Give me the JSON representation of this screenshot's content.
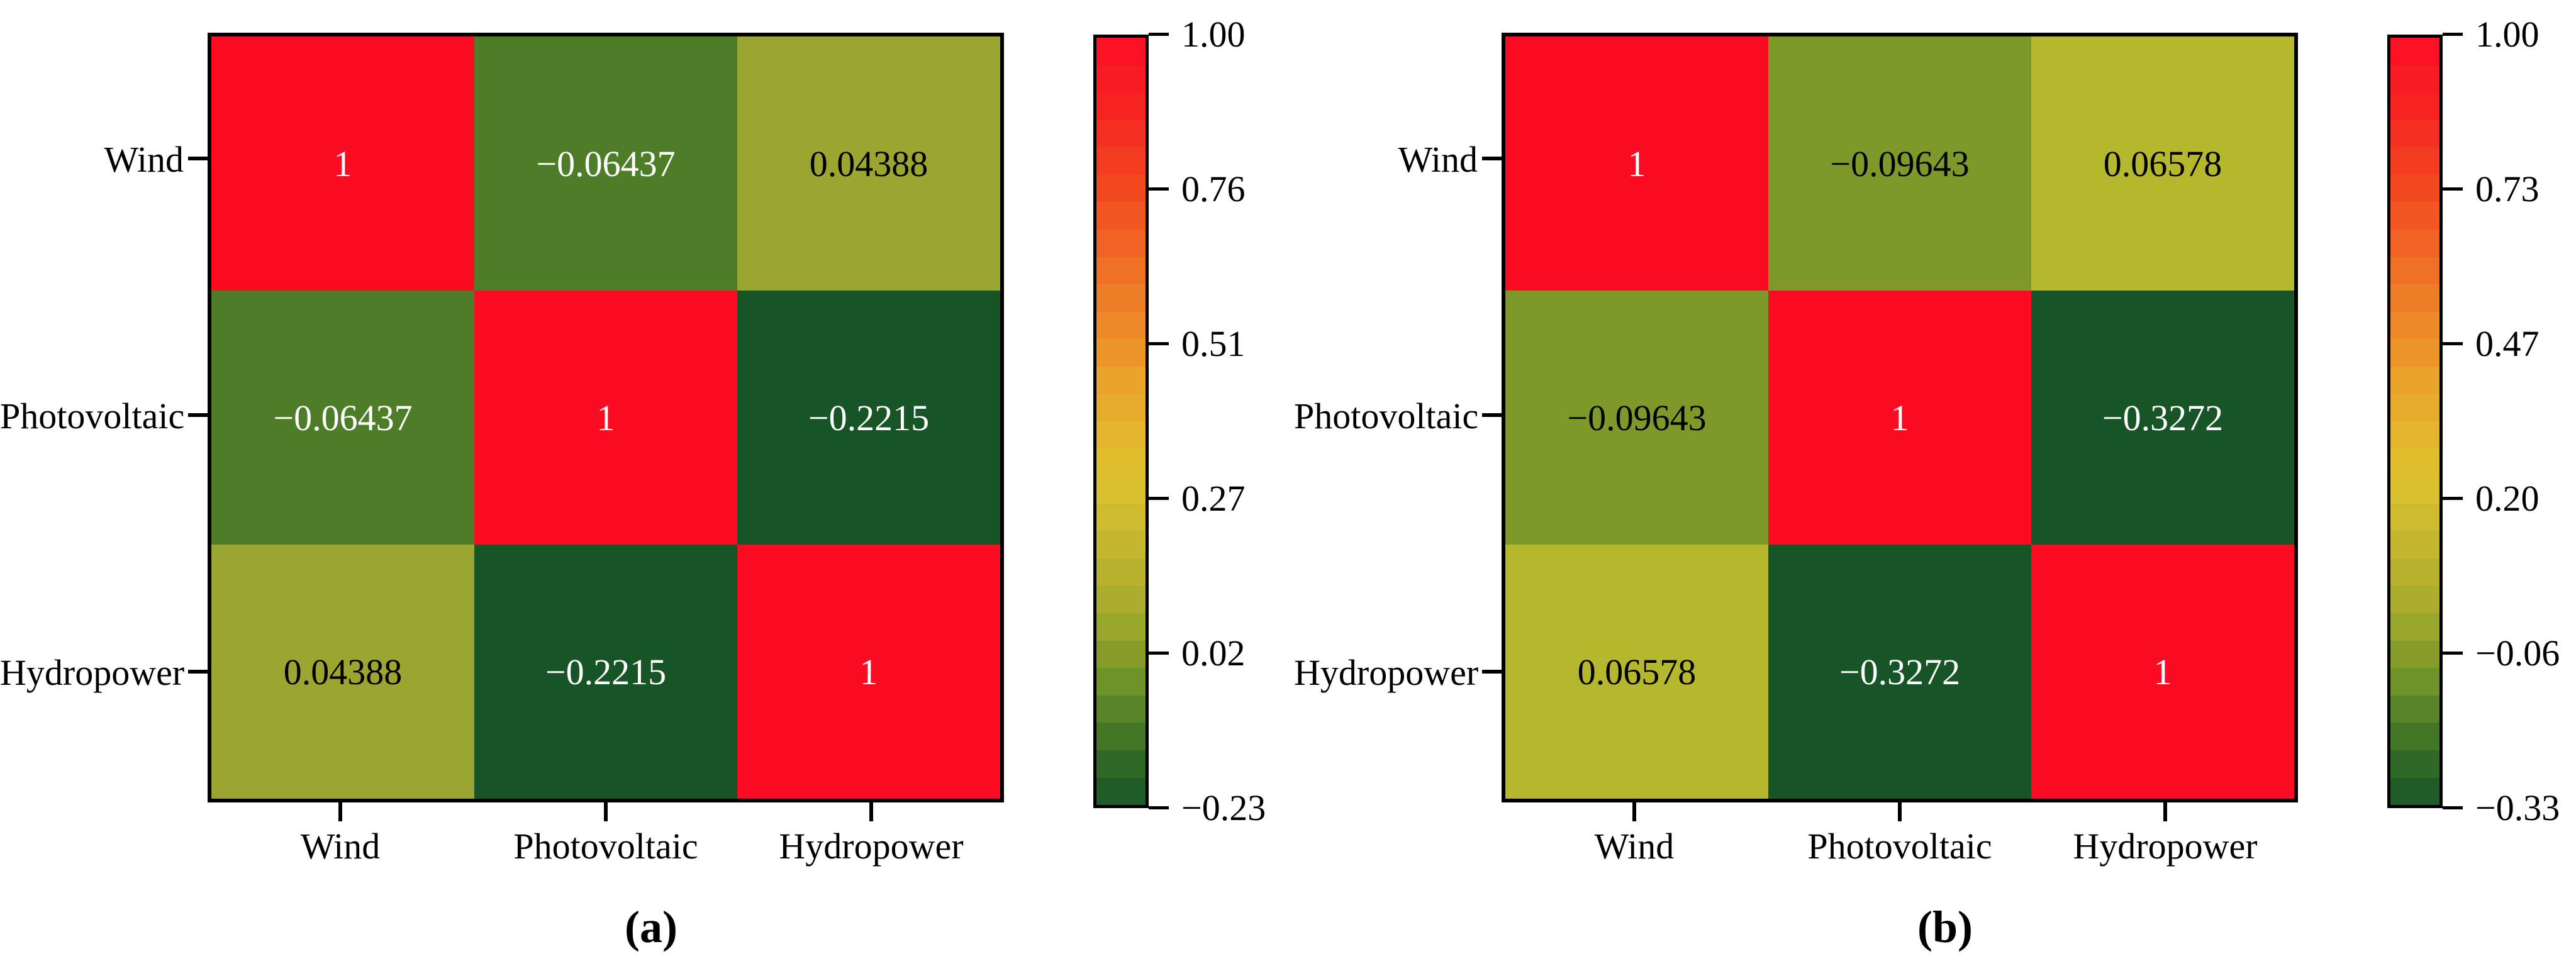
{
  "figure": {
    "background": "#ffffff",
    "font_color": "#000000"
  },
  "colormap": {
    "description": "red (high) to dark green (low), stepped",
    "steps": 28,
    "stops": [
      {
        "t": 0.0,
        "c": "#fb0c23"
      },
      {
        "t": 0.1,
        "c": "#f62621"
      },
      {
        "t": 0.2,
        "c": "#f34a21"
      },
      {
        "t": 0.32,
        "c": "#ef7626"
      },
      {
        "t": 0.45,
        "c": "#eaa42b"
      },
      {
        "t": 0.57,
        "c": "#e0c22e"
      },
      {
        "t": 0.67,
        "c": "#c1b52e"
      },
      {
        "t": 0.76,
        "c": "#9fa92d"
      },
      {
        "t": 0.84,
        "c": "#6f9229"
      },
      {
        "t": 0.92,
        "c": "#3d7327"
      },
      {
        "t": 1.0,
        "c": "#175527"
      }
    ]
  },
  "chart_data": [
    {
      "type": "heatmap",
      "panel_label": "(a)",
      "x_categories": [
        "Wind",
        "Photovoltaic",
        "Hydropower"
      ],
      "y_categories": [
        "Wind",
        "Photovoltaic",
        "Hydropower"
      ],
      "matrix": [
        [
          1,
          -0.06437,
          0.04388
        ],
        [
          -0.06437,
          1,
          -0.2215
        ],
        [
          0.04388,
          -0.2215,
          1
        ]
      ],
      "cell_labels": [
        [
          "1",
          "−0.06437",
          "0.04388"
        ],
        [
          "−0.06437",
          "1",
          "−0.2215"
        ],
        [
          "0.04388",
          "−0.2215",
          "1"
        ]
      ],
      "cell_colors": [
        [
          "#fb0c23",
          "#4e7d28",
          "#9aa62f"
        ],
        [
          "#4e7d28",
          "#fb0c23",
          "#175527"
        ],
        [
          "#9aa62f",
          "#175527",
          "#fb0c23"
        ]
      ],
      "cell_text_colors": [
        [
          "#ffffff",
          "#ffffff",
          "#000000"
        ],
        [
          "#ffffff",
          "#ffffff",
          "#ffffff"
        ],
        [
          "#000000",
          "#ffffff",
          "#ffffff"
        ]
      ],
      "colorbar": {
        "vmin": -0.23,
        "vmax": 1.0,
        "ticks": [
          "1.00",
          "0.76",
          "0.51",
          "0.27",
          "0.02",
          "−0.23"
        ]
      }
    },
    {
      "type": "heatmap",
      "panel_label": "(b)",
      "x_categories": [
        "Wind",
        "Photovoltaic",
        "Hydropower"
      ],
      "y_categories": [
        "Wind",
        "Photovoltaic",
        "Hydropower"
      ],
      "matrix": [
        [
          1,
          -0.09643,
          0.06578
        ],
        [
          -0.09643,
          1,
          -0.3272
        ],
        [
          0.06578,
          -0.3272,
          1
        ]
      ],
      "cell_labels": [
        [
          "1",
          "−0.09643",
          "0.06578"
        ],
        [
          "−0.09643",
          "1",
          "−0.3272"
        ],
        [
          "0.06578",
          "−0.3272",
          "1"
        ]
      ],
      "cell_colors": [
        [
          "#fb0c23",
          "#7c9929",
          "#b5b82c"
        ],
        [
          "#7c9929",
          "#fb0c23",
          "#175527"
        ],
        [
          "#b5b82c",
          "#175527",
          "#fb0c23"
        ]
      ],
      "cell_text_colors": [
        [
          "#ffffff",
          "#000000",
          "#000000"
        ],
        [
          "#000000",
          "#ffffff",
          "#ffffff"
        ],
        [
          "#000000",
          "#ffffff",
          "#ffffff"
        ]
      ],
      "colorbar": {
        "vmin": -0.33,
        "vmax": 1.0,
        "ticks": [
          "1.00",
          "0.73",
          "0.47",
          "0.20",
          "−0.06",
          "−0.33"
        ]
      }
    }
  ]
}
